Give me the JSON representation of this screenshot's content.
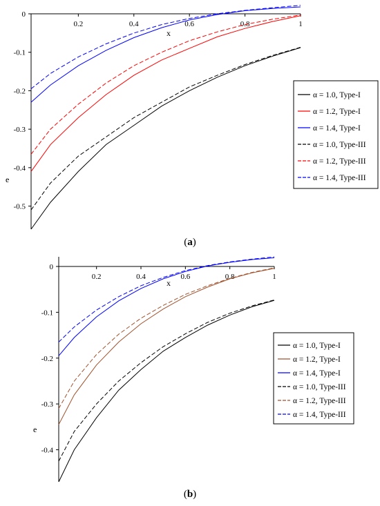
{
  "chart_data": [
    {
      "type": "line",
      "panel_label": "a",
      "xlabel": "x",
      "ylabel": "e",
      "xlim": [
        0.03,
        1.0
      ],
      "ylim": [
        -0.56,
        0.02
      ],
      "x_ticks": [
        "0.2",
        "0.4",
        "0.6",
        "0.8",
        "1"
      ],
      "y_ticks": [
        "0",
        "-0.1",
        "-0.2",
        "-0.3",
        "-0.4",
        "-0.5"
      ],
      "legend_position": "right",
      "series": [
        {
          "name": "α = 1.0, Type-I",
          "color": "#000000",
          "dash": "solid",
          "x": [
            0.03,
            0.1,
            0.2,
            0.3,
            0.4,
            0.5,
            0.6,
            0.7,
            0.8,
            0.9,
            1.0
          ],
          "y": [
            -0.56,
            -0.49,
            -0.41,
            -0.34,
            -0.29,
            -0.24,
            -0.2,
            -0.165,
            -0.135,
            -0.11,
            -0.088
          ]
        },
        {
          "name": "α = 1.2, Type-I",
          "color": "#ff0000",
          "dash": "solid",
          "x": [
            0.03,
            0.1,
            0.2,
            0.3,
            0.4,
            0.5,
            0.6,
            0.7,
            0.8,
            0.9,
            1.0
          ],
          "y": [
            -0.41,
            -0.34,
            -0.27,
            -0.21,
            -0.16,
            -0.12,
            -0.09,
            -0.06,
            -0.038,
            -0.02,
            -0.005
          ]
        },
        {
          "name": "α = 1.4, Type-I",
          "color": "#0000ff",
          "dash": "solid",
          "x": [
            0.03,
            0.1,
            0.2,
            0.3,
            0.4,
            0.5,
            0.6,
            0.7,
            0.8,
            0.9,
            1.0
          ],
          "y": [
            -0.23,
            -0.185,
            -0.135,
            -0.095,
            -0.062,
            -0.036,
            -0.016,
            -0.002,
            0.008,
            0.014,
            0.018
          ]
        },
        {
          "name": "α = 1.0, Type-III",
          "color": "#000000",
          "dash": "dashed",
          "x": [
            0.03,
            0.1,
            0.2,
            0.3,
            0.4,
            0.5,
            0.6,
            0.7,
            0.8,
            0.9,
            1.0
          ],
          "y": [
            -0.51,
            -0.44,
            -0.37,
            -0.32,
            -0.27,
            -0.23,
            -0.19,
            -0.16,
            -0.132,
            -0.108,
            -0.087
          ]
        },
        {
          "name": "α = 1.2, Type-III",
          "color": "#ff0000",
          "dash": "dashed",
          "x": [
            0.03,
            0.1,
            0.2,
            0.3,
            0.4,
            0.5,
            0.6,
            0.7,
            0.8,
            0.9,
            1.0
          ],
          "y": [
            -0.365,
            -0.3,
            -0.235,
            -0.18,
            -0.135,
            -0.1,
            -0.07,
            -0.047,
            -0.028,
            -0.014,
            -0.003
          ]
        },
        {
          "name": "α = 1.4, Type-III",
          "color": "#0000ff",
          "dash": "dashed",
          "x": [
            0.03,
            0.1,
            0.2,
            0.3,
            0.4,
            0.5,
            0.6,
            0.7,
            0.8,
            0.9,
            1.0
          ],
          "y": [
            -0.195,
            -0.155,
            -0.112,
            -0.078,
            -0.05,
            -0.028,
            -0.012,
            0.0,
            0.009,
            0.016,
            0.022
          ]
        }
      ]
    },
    {
      "type": "line",
      "panel_label": "b",
      "xlabel": "x",
      "ylabel": "e",
      "xlim": [
        0.03,
        1.0
      ],
      "ylim": [
        -0.47,
        0.02
      ],
      "x_ticks": [
        "0.2",
        "0.4",
        "0.6",
        "0.8",
        "1"
      ],
      "y_ticks": [
        "0",
        "-0.1",
        "-0.2",
        "-0.3",
        "-0.4"
      ],
      "legend_position": "right",
      "series": [
        {
          "name": "α = 1.0, Type-I",
          "color": "#000000",
          "dash": "solid",
          "x": [
            0.03,
            0.1,
            0.2,
            0.3,
            0.4,
            0.5,
            0.6,
            0.7,
            0.8,
            0.9,
            1.0
          ],
          "y": [
            -0.47,
            -0.4,
            -0.33,
            -0.27,
            -0.225,
            -0.185,
            -0.155,
            -0.128,
            -0.106,
            -0.088,
            -0.074
          ]
        },
        {
          "name": "α = 1.2, Type-I",
          "color": "#a0522d",
          "dash": "solid",
          "x": [
            0.03,
            0.1,
            0.2,
            0.3,
            0.4,
            0.5,
            0.6,
            0.7,
            0.8,
            0.9,
            1.0
          ],
          "y": [
            -0.345,
            -0.28,
            -0.215,
            -0.165,
            -0.125,
            -0.093,
            -0.066,
            -0.045,
            -0.027,
            -0.014,
            -0.004
          ]
        },
        {
          "name": "α = 1.4, Type-I",
          "color": "#0000ff",
          "dash": "solid",
          "x": [
            0.03,
            0.1,
            0.2,
            0.3,
            0.4,
            0.5,
            0.6,
            0.7,
            0.8,
            0.9,
            1.0
          ],
          "y": [
            -0.195,
            -0.155,
            -0.11,
            -0.075,
            -0.048,
            -0.027,
            -0.011,
            0.001,
            0.009,
            0.015,
            0.019
          ]
        },
        {
          "name": "α = 1.0, Type-III",
          "color": "#000000",
          "dash": "dashed",
          "x": [
            0.03,
            0.1,
            0.2,
            0.3,
            0.4,
            0.5,
            0.6,
            0.7,
            0.8,
            0.9,
            1.0
          ],
          "y": [
            -0.425,
            -0.36,
            -0.3,
            -0.25,
            -0.21,
            -0.175,
            -0.147,
            -0.122,
            -0.102,
            -0.086,
            -0.073
          ]
        },
        {
          "name": "α = 1.2, Type-III",
          "color": "#a0522d",
          "dash": "dashed",
          "x": [
            0.03,
            0.1,
            0.2,
            0.3,
            0.4,
            0.5,
            0.6,
            0.7,
            0.8,
            0.9,
            1.0
          ],
          "y": [
            -0.31,
            -0.25,
            -0.192,
            -0.148,
            -0.113,
            -0.085,
            -0.061,
            -0.042,
            -0.026,
            -0.013,
            -0.003
          ]
        },
        {
          "name": "α = 1.4, Type-III",
          "color": "#0000ff",
          "dash": "dashed",
          "x": [
            0.03,
            0.1,
            0.2,
            0.3,
            0.4,
            0.5,
            0.6,
            0.7,
            0.8,
            0.9,
            1.0
          ],
          "y": [
            -0.165,
            -0.132,
            -0.095,
            -0.066,
            -0.042,
            -0.024,
            -0.009,
            0.002,
            0.01,
            0.016,
            0.021
          ]
        }
      ]
    }
  ]
}
